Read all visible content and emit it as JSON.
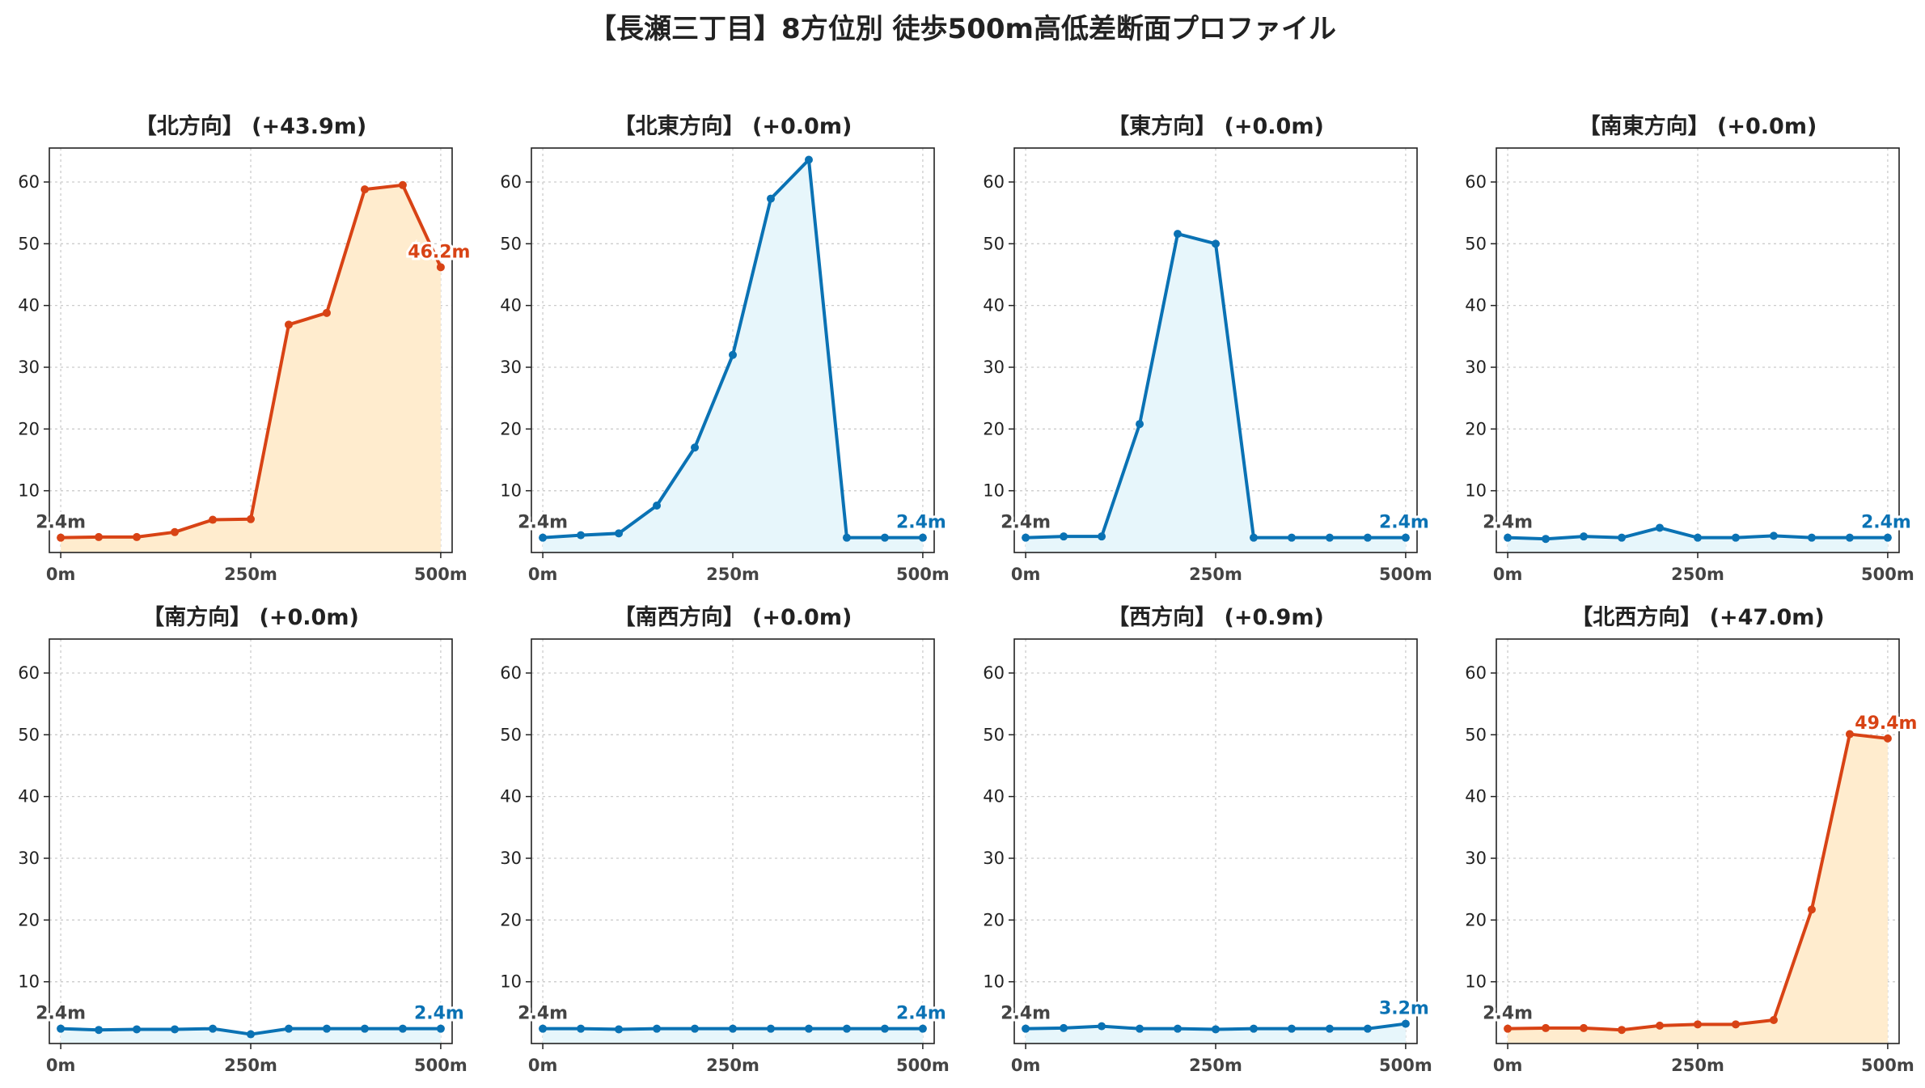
{
  "title": "【長瀬三丁目】8方位別 徒歩500m高低差断面プロファイル",
  "colors": {
    "up_line": "#d84315",
    "up_fill": "#ffecce",
    "flat_line": "#0a72b4",
    "flat_fill": "#e7f6fb",
    "start_label": "#444444",
    "grid": "#cccccc"
  },
  "chart_data": [
    {
      "type": "area",
      "direction": "北方向",
      "title": "【北方向】 (+43.9m)",
      "trend": "up",
      "x": [
        0,
        50,
        100,
        150,
        200,
        250,
        300,
        350,
        400,
        450,
        500
      ],
      "y": [
        2.4,
        2.5,
        2.5,
        3.3,
        5.3,
        5.4,
        36.9,
        38.8,
        58.8,
        59.5,
        46.2
      ],
      "start_label": "2.4m",
      "end_label": "46.2m",
      "xticks": [
        "0m",
        "250m",
        "500m"
      ],
      "yticks": [
        10,
        20,
        30,
        40,
        50,
        60
      ],
      "ylim": [
        0,
        65.5
      ],
      "grid": true
    },
    {
      "type": "area",
      "direction": "北東方向",
      "title": "【北東方向】 (+0.0m)",
      "trend": "flat",
      "x": [
        0,
        50,
        100,
        150,
        200,
        250,
        300,
        350,
        400,
        450,
        500
      ],
      "y": [
        2.4,
        2.8,
        3.1,
        7.6,
        17.0,
        32.0,
        57.3,
        63.6,
        2.4,
        2.4,
        2.4
      ],
      "start_label": "2.4m",
      "end_label": "2.4m",
      "xticks": [
        "0m",
        "250m",
        "500m"
      ],
      "yticks": [
        10,
        20,
        30,
        40,
        50,
        60
      ],
      "ylim": [
        0,
        65.5
      ],
      "grid": true
    },
    {
      "type": "area",
      "direction": "東方向",
      "title": "【東方向】 (+0.0m)",
      "trend": "flat",
      "x": [
        0,
        50,
        100,
        150,
        200,
        250,
        300,
        350,
        400,
        450,
        500
      ],
      "y": [
        2.4,
        2.6,
        2.6,
        20.8,
        51.6,
        50.0,
        2.4,
        2.4,
        2.4,
        2.4,
        2.4
      ],
      "start_label": "2.4m",
      "end_label": "2.4m",
      "xticks": [
        "0m",
        "250m",
        "500m"
      ],
      "yticks": [
        10,
        20,
        30,
        40,
        50,
        60
      ],
      "ylim": [
        0,
        65.5
      ],
      "grid": true
    },
    {
      "type": "area",
      "direction": "南東方向",
      "title": "【南東方向】 (+0.0m)",
      "trend": "flat",
      "x": [
        0,
        50,
        100,
        150,
        200,
        250,
        300,
        350,
        400,
        450,
        500
      ],
      "y": [
        2.4,
        2.2,
        2.6,
        2.4,
        4.0,
        2.4,
        2.4,
        2.7,
        2.4,
        2.4,
        2.4
      ],
      "start_label": "2.4m",
      "end_label": "2.4m",
      "xticks": [
        "0m",
        "250m",
        "500m"
      ],
      "yticks": [
        10,
        20,
        30,
        40,
        50,
        60
      ],
      "ylim": [
        0,
        65.5
      ],
      "grid": true
    },
    {
      "type": "area",
      "direction": "南方向",
      "title": "【南方向】 (+0.0m)",
      "trend": "flat",
      "x": [
        0,
        50,
        100,
        150,
        200,
        250,
        300,
        350,
        400,
        450,
        500
      ],
      "y": [
        2.4,
        2.2,
        2.3,
        2.3,
        2.4,
        1.5,
        2.4,
        2.4,
        2.4,
        2.4,
        2.4
      ],
      "start_label": "2.4m",
      "end_label": "2.4m",
      "xticks": [
        "0m",
        "250m",
        "500m"
      ],
      "yticks": [
        10,
        20,
        30,
        40,
        50,
        60
      ],
      "ylim": [
        0,
        65.5
      ],
      "grid": true
    },
    {
      "type": "area",
      "direction": "南西方向",
      "title": "【南西方向】 (+0.0m)",
      "trend": "flat",
      "x": [
        0,
        50,
        100,
        150,
        200,
        250,
        300,
        350,
        400,
        450,
        500
      ],
      "y": [
        2.4,
        2.4,
        2.3,
        2.4,
        2.4,
        2.4,
        2.4,
        2.4,
        2.4,
        2.4,
        2.4
      ],
      "start_label": "2.4m",
      "end_label": "2.4m",
      "xticks": [
        "0m",
        "250m",
        "500m"
      ],
      "yticks": [
        10,
        20,
        30,
        40,
        50,
        60
      ],
      "ylim": [
        0,
        65.5
      ],
      "grid": true
    },
    {
      "type": "area",
      "direction": "西方向",
      "title": "【西方向】 (+0.9m)",
      "trend": "flat",
      "x": [
        0,
        50,
        100,
        150,
        200,
        250,
        300,
        350,
        400,
        450,
        500
      ],
      "y": [
        2.4,
        2.5,
        2.8,
        2.4,
        2.4,
        2.3,
        2.4,
        2.4,
        2.4,
        2.4,
        3.2
      ],
      "start_label": "2.4m",
      "end_label": "3.2m",
      "xticks": [
        "0m",
        "250m",
        "500m"
      ],
      "yticks": [
        10,
        20,
        30,
        40,
        50,
        60
      ],
      "ylim": [
        0,
        65.5
      ],
      "grid": true
    },
    {
      "type": "area",
      "direction": "北西方向",
      "title": "【北西方向】 (+47.0m)",
      "trend": "up",
      "x": [
        0,
        50,
        100,
        150,
        200,
        250,
        300,
        350,
        400,
        450,
        500
      ],
      "y": [
        2.4,
        2.5,
        2.5,
        2.2,
        2.9,
        3.1,
        3.1,
        3.8,
        21.7,
        50.1,
        49.4
      ],
      "start_label": "2.4m",
      "end_label": "49.4m",
      "xticks": [
        "0m",
        "250m",
        "500m"
      ],
      "yticks": [
        10,
        20,
        30,
        40,
        50,
        60
      ],
      "ylim": [
        0,
        65.5
      ],
      "grid": true
    }
  ]
}
